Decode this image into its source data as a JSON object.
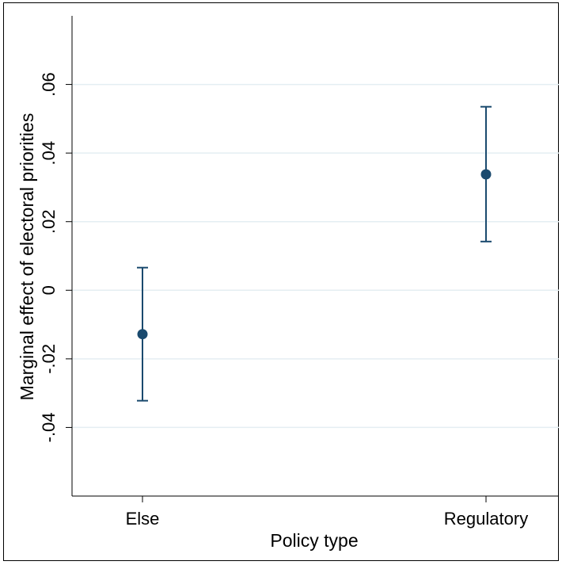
{
  "chart_data": {
    "type": "scatter",
    "title": "",
    "xlabel": "Policy type",
    "ylabel": "Marginal effect of electoral priorities",
    "categories": [
      "Else",
      "Regulatory"
    ],
    "series": [
      {
        "values": [
          -0.0128,
          0.0338
        ],
        "ci_lower": [
          -0.0322,
          0.0142
        ],
        "ci_upper": [
          0.0066,
          0.0535
        ]
      }
    ],
    "ylim": [
      -0.06,
      0.08
    ],
    "yticks": [
      -0.04,
      -0.02,
      0,
      0.02,
      0.04,
      0.06
    ],
    "ytick_labels": [
      "-.04",
      "-.02",
      "0",
      ".02",
      ".04",
      ".06"
    ],
    "grid": true,
    "colors": {
      "marker": "#1a4a6e",
      "grid": "#e4eef2",
      "axis": "#000000"
    }
  }
}
